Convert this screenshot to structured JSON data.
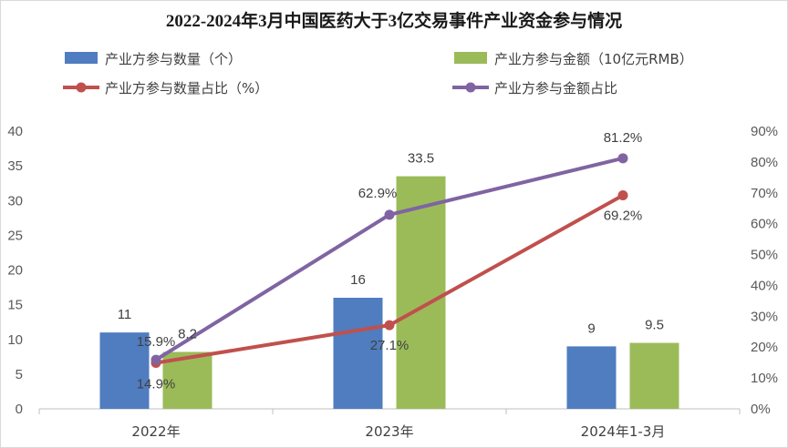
{
  "chart_data": {
    "type": "bar",
    "title": "2022-2024年3月中国医药大于3亿交易事件产业资金参与情况",
    "categories": [
      "2022年",
      "2023年",
      "2024年1-3月"
    ],
    "ylim": [
      0,
      40
    ],
    "yticks": [
      0,
      5,
      10,
      15,
      20,
      25,
      30,
      35,
      40
    ],
    "y2lim": [
      0,
      90
    ],
    "y2ticks": [
      "0%",
      "10%",
      "20%",
      "30%",
      "40%",
      "50%",
      "60%",
      "70%",
      "80%",
      "90%"
    ],
    "bar_series": [
      {
        "name": "产业方参与数量（个）",
        "values": [
          11,
          16,
          9
        ],
        "labels": [
          "11",
          "16",
          "9"
        ],
        "color": "#4f7dc0"
      },
      {
        "name": "产业方参与金额（10亿元RMB）",
        "values": [
          8.2,
          33.5,
          9.5
        ],
        "labels": [
          "8.2",
          "33.5",
          "9.5"
        ],
        "color": "#9bbb59"
      }
    ],
    "line_series": [
      {
        "name": "产业方参与数量占比（%）",
        "values": [
          14.9,
          27.1,
          69.2
        ],
        "labels": [
          "14.9%",
          "27.1%",
          "69.2%"
        ],
        "color": "#c0504d"
      },
      {
        "name": "产业方参与金额占比",
        "values": [
          15.9,
          62.9,
          81.2
        ],
        "labels": [
          "15.9%",
          "62.9%",
          "81.2%"
        ],
        "color": "#8064a2"
      }
    ],
    "legend": "top"
  }
}
